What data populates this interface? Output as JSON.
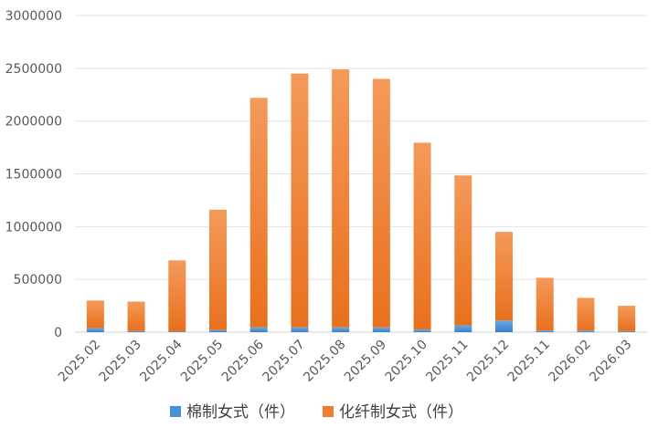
{
  "chart_data": {
    "type": "bar",
    "stacked": true,
    "categories": [
      "2025.02",
      "2025.03",
      "2025.04",
      "2025.05",
      "2025.06",
      "2025.07",
      "2025.08",
      "2025.09",
      "2025.10",
      "2025.11",
      "2025.12",
      "2025.11",
      "2026.02",
      "2026.03"
    ],
    "series": [
      {
        "name": "棉制女式（件）",
        "color": "#4a90d9",
        "values": [
          38000,
          10000,
          8000,
          20000,
          45000,
          45000,
          45000,
          45000,
          25000,
          65000,
          110000,
          15000,
          15000,
          10000
        ]
      },
      {
        "name": "化纤制女式（件）",
        "color": "#ed7d31",
        "values": [
          262000,
          280000,
          672000,
          1140000,
          2175000,
          2405000,
          2445000,
          2355000,
          1770000,
          1420000,
          840000,
          500000,
          310000,
          240000
        ]
      }
    ],
    "y_ticks": [
      "0",
      "500000",
      "1000000",
      "1500000",
      "2000000",
      "2500000",
      "3000000"
    ],
    "ylim": [
      0,
      3000000
    ],
    "grid": true,
    "legend_position": "bottom"
  }
}
